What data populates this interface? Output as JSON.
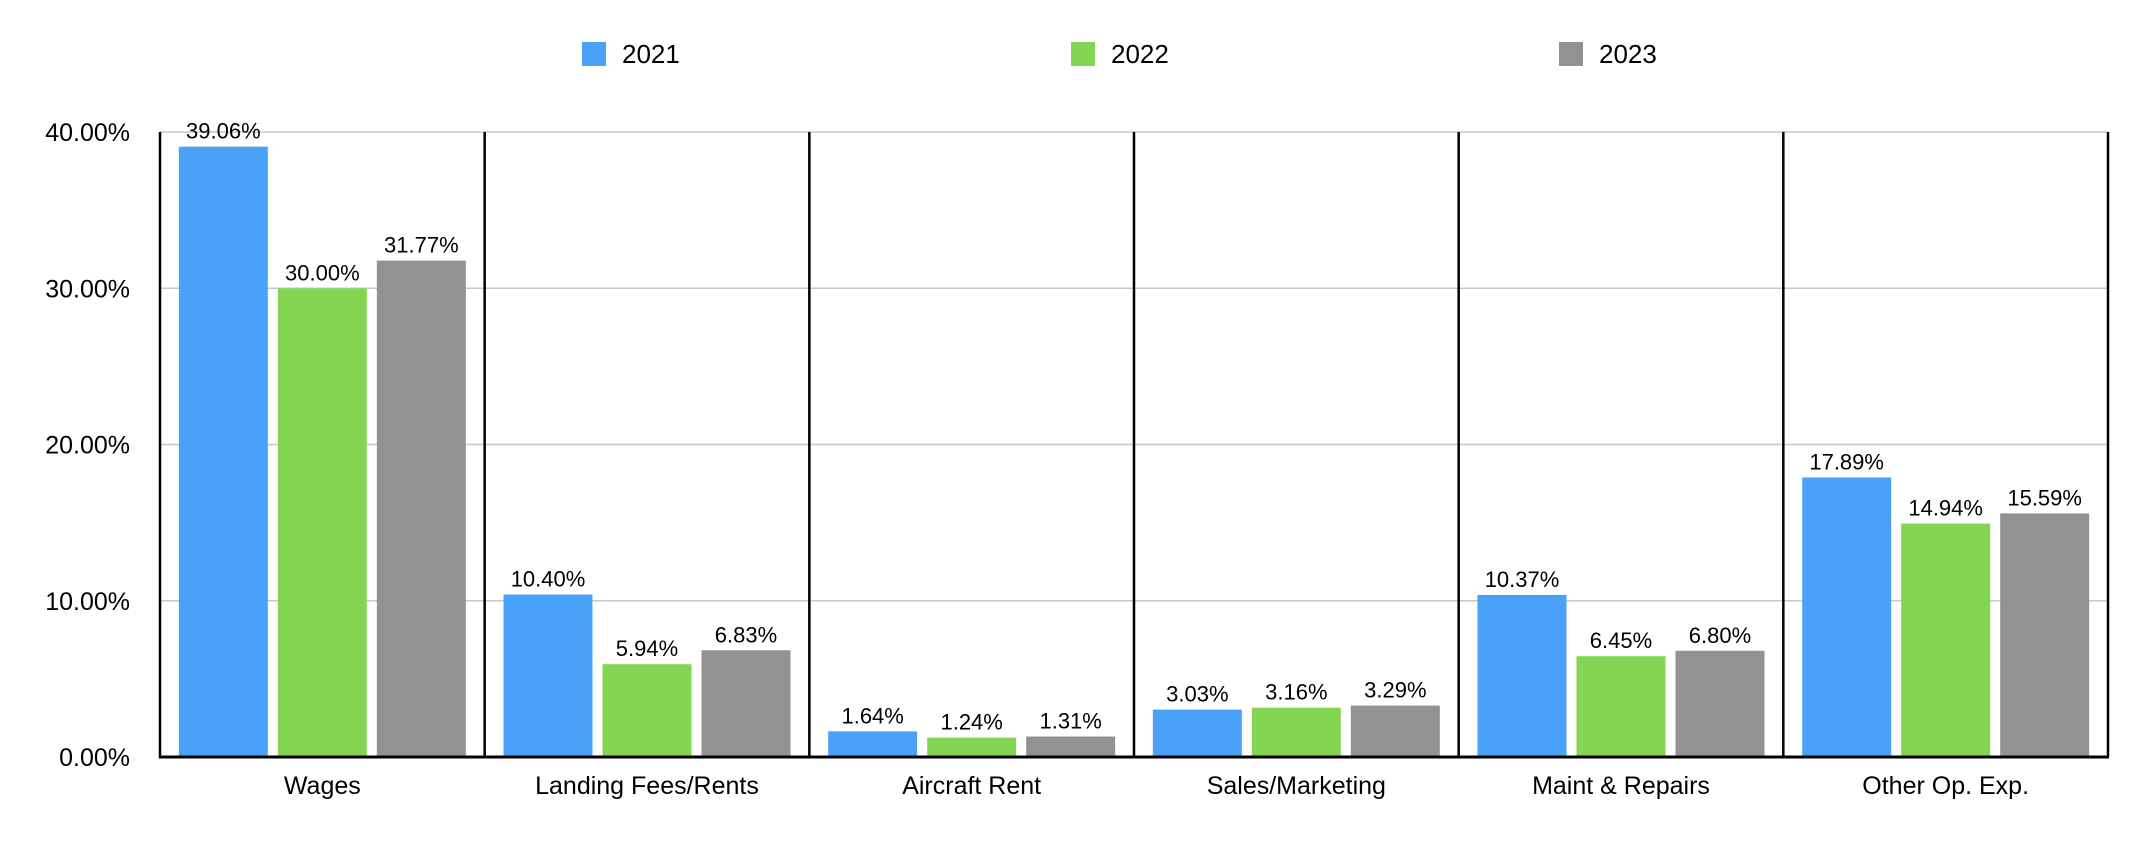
{
  "chart_data": {
    "type": "bar",
    "title": "",
    "xlabel": "",
    "ylabel": "",
    "categories": [
      "Wages",
      "Landing Fees/Rents",
      "Aircraft Rent",
      "Sales/Marketing",
      "Maint & Repairs",
      "Other Op. Exp."
    ],
    "series": [
      {
        "name": "2021",
        "color": "#4aa1f8",
        "values": [
          39.06,
          10.4,
          1.64,
          3.03,
          10.37,
          17.89
        ],
        "labels": [
          "39.06%",
          "10.40%",
          "1.64%",
          "3.03%",
          "10.37%",
          "17.89%"
        ]
      },
      {
        "name": "2022",
        "color": "#84d652",
        "values": [
          30.0,
          5.94,
          1.24,
          3.16,
          6.45,
          14.94
        ],
        "labels": [
          "30.00%",
          "5.94%",
          "1.24%",
          "3.16%",
          "6.45%",
          "14.94%"
        ]
      },
      {
        "name": "2023",
        "color": "#929292",
        "values": [
          31.77,
          6.83,
          1.31,
          3.29,
          6.8,
          15.59
        ],
        "labels": [
          "31.77%",
          "6.83%",
          "1.31%",
          "3.29%",
          "6.80%",
          "15.59%"
        ]
      }
    ],
    "ylim": [
      0,
      40
    ],
    "yticks": [
      0,
      10,
      20,
      30,
      40
    ],
    "ytick_labels": [
      "0.00%",
      "10.00%",
      "20.00%",
      "30.00%",
      "40.00%"
    ],
    "grid": true,
    "legend_position": "top-center"
  }
}
